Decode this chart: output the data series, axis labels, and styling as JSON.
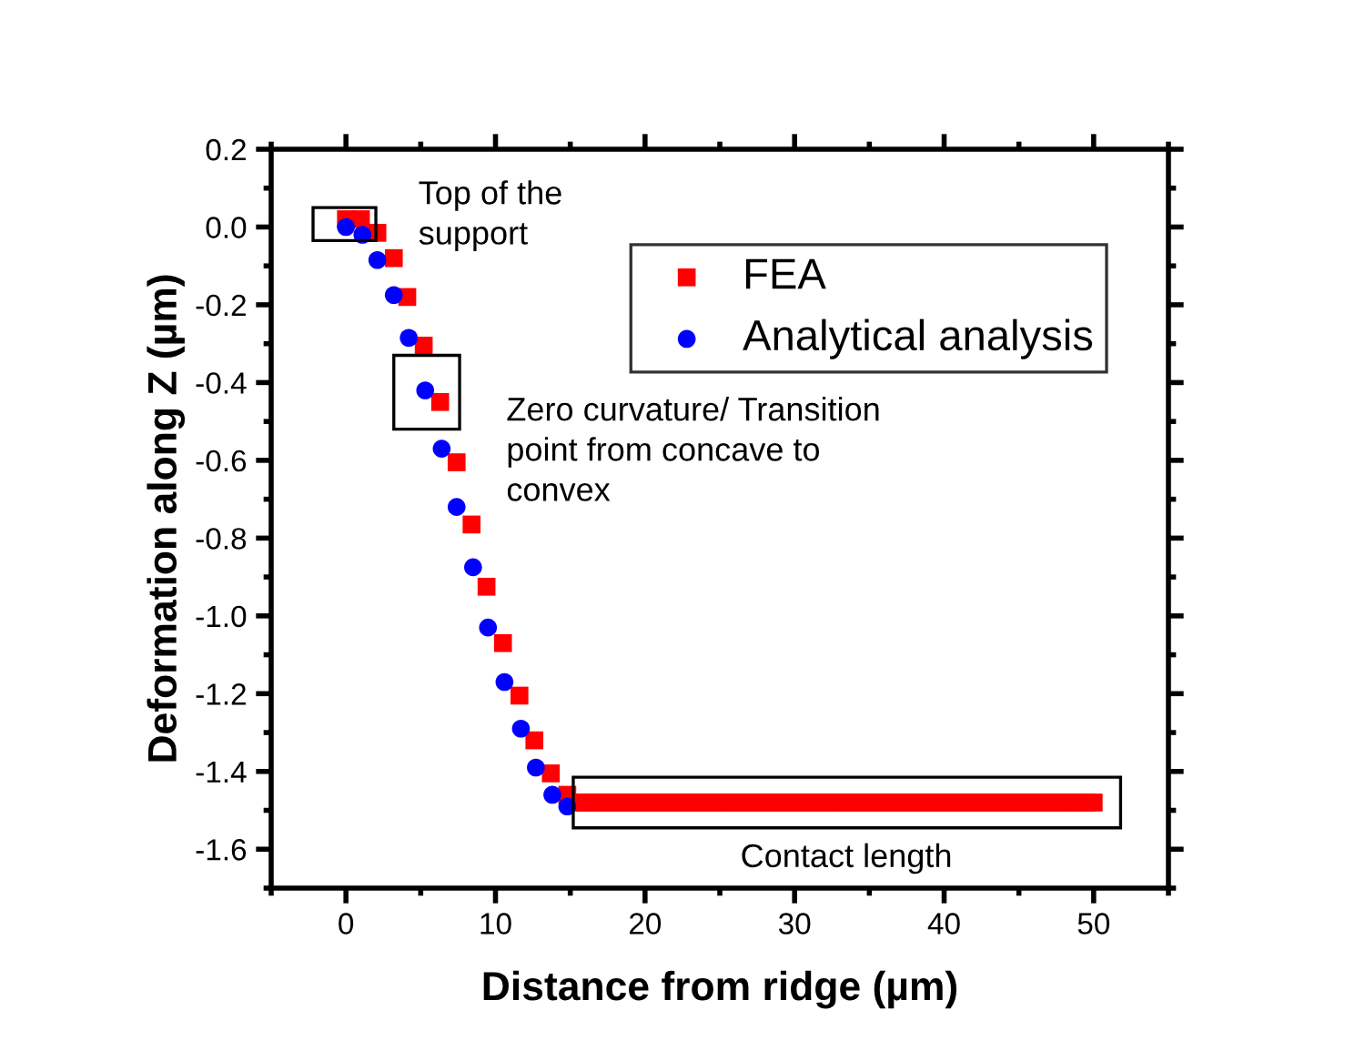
{
  "chart_data": {
    "type": "scatter",
    "xlabel": "Distance from ridge (µm)",
    "ylabel": "Deformation along Z (µm)",
    "series": [
      {
        "name": "FEA",
        "color": "#ff0000",
        "marker": "square",
        "x": [
          0,
          1,
          2.1,
          3.2,
          4.1,
          5.2,
          6.3,
          7.4,
          8.4,
          9.4,
          10.5,
          11.6,
          12.6,
          13.7,
          14.8,
          15.5,
          16,
          16.5,
          17,
          17.5,
          18,
          18.5,
          19,
          19.5,
          20,
          20.5,
          21,
          21.5,
          22,
          22.5,
          23,
          23.5,
          24,
          24.5,
          25,
          25.5,
          26,
          26.5,
          27,
          27.5,
          28,
          28.5,
          29,
          29.5,
          30,
          30.5,
          31,
          31.5,
          32,
          32.5,
          33,
          33.5,
          34,
          34.5,
          35,
          35.5,
          36,
          36.5,
          37,
          37.5,
          38,
          38.5,
          39,
          39.5,
          40,
          40.5,
          41,
          41.5,
          42,
          42.5,
          43,
          43.5,
          44,
          44.5,
          45,
          45.5,
          46,
          46.5,
          47,
          47.5,
          48,
          48.5,
          49,
          49.5,
          50
        ],
        "values": [
          0.02,
          0.02,
          -0.015,
          -0.08,
          -0.18,
          -0.305,
          -0.45,
          -0.605,
          -0.765,
          -0.925,
          -1.07,
          -1.205,
          -1.32,
          -1.405,
          -1.46,
          -1.48,
          -1.48,
          -1.48,
          -1.48,
          -1.48,
          -1.48,
          -1.48,
          -1.48,
          -1.48,
          -1.48,
          -1.48,
          -1.48,
          -1.48,
          -1.48,
          -1.48,
          -1.48,
          -1.48,
          -1.48,
          -1.48,
          -1.48,
          -1.48,
          -1.48,
          -1.48,
          -1.48,
          -1.48,
          -1.48,
          -1.48,
          -1.48,
          -1.48,
          -1.48,
          -1.48,
          -1.48,
          -1.48,
          -1.48,
          -1.48,
          -1.48,
          -1.48,
          -1.48,
          -1.48,
          -1.48,
          -1.48,
          -1.48,
          -1.48,
          -1.48,
          -1.48,
          -1.48,
          -1.48,
          -1.48,
          -1.48,
          -1.48,
          -1.48,
          -1.48,
          -1.48,
          -1.48,
          -1.48,
          -1.48,
          -1.48,
          -1.48,
          -1.48,
          -1.48,
          -1.48,
          -1.48,
          -1.48,
          -1.48,
          -1.48,
          -1.48,
          -1.48,
          -1.48,
          -1.48,
          -1.48
        ]
      },
      {
        "name": "Analytical analysis",
        "color": "#0000ff",
        "marker": "circle",
        "x": [
          0,
          1.1,
          2.1,
          3.2,
          4.2,
          5.3,
          6.4,
          7.4,
          8.5,
          9.5,
          10.6,
          11.7,
          12.7,
          13.8,
          14.8
        ],
        "values": [
          0,
          -0.02,
          -0.085,
          -0.175,
          -0.285,
          -0.42,
          -0.57,
          -0.72,
          -0.875,
          -1.03,
          -1.17,
          -1.29,
          -1.39,
          -1.46,
          -1.49
        ]
      }
    ],
    "annotations": [
      "Top of the\nsupport",
      "Zero curvature/ Transition\npoint from concave to\nconvex",
      "Contact length"
    ],
    "xlim": [
      -5,
      55
    ],
    "xticks": [
      0,
      10,
      20,
      30,
      40,
      50
    ],
    "ylim": [
      -1.7,
      0.2
    ],
    "yticks": [
      {
        "value": 0.2,
        "label": "0.2"
      },
      {
        "value": 0.0,
        "label": "0.0"
      },
      {
        "value": -0.2,
        "label": "-0.2"
      },
      {
        "value": -0.4,
        "label": "-0.4"
      },
      {
        "value": -0.6,
        "label": "-0.6"
      },
      {
        "value": -0.8,
        "label": "-0.8"
      },
      {
        "value": -1.0,
        "label": "-1.0"
      },
      {
        "value": -1.2,
        "label": "-1.2"
      },
      {
        "value": -1.4,
        "label": "-1.4"
      },
      {
        "value": -1.6,
        "label": "-1.6"
      }
    ],
    "grid": false,
    "legend": "top right"
  }
}
